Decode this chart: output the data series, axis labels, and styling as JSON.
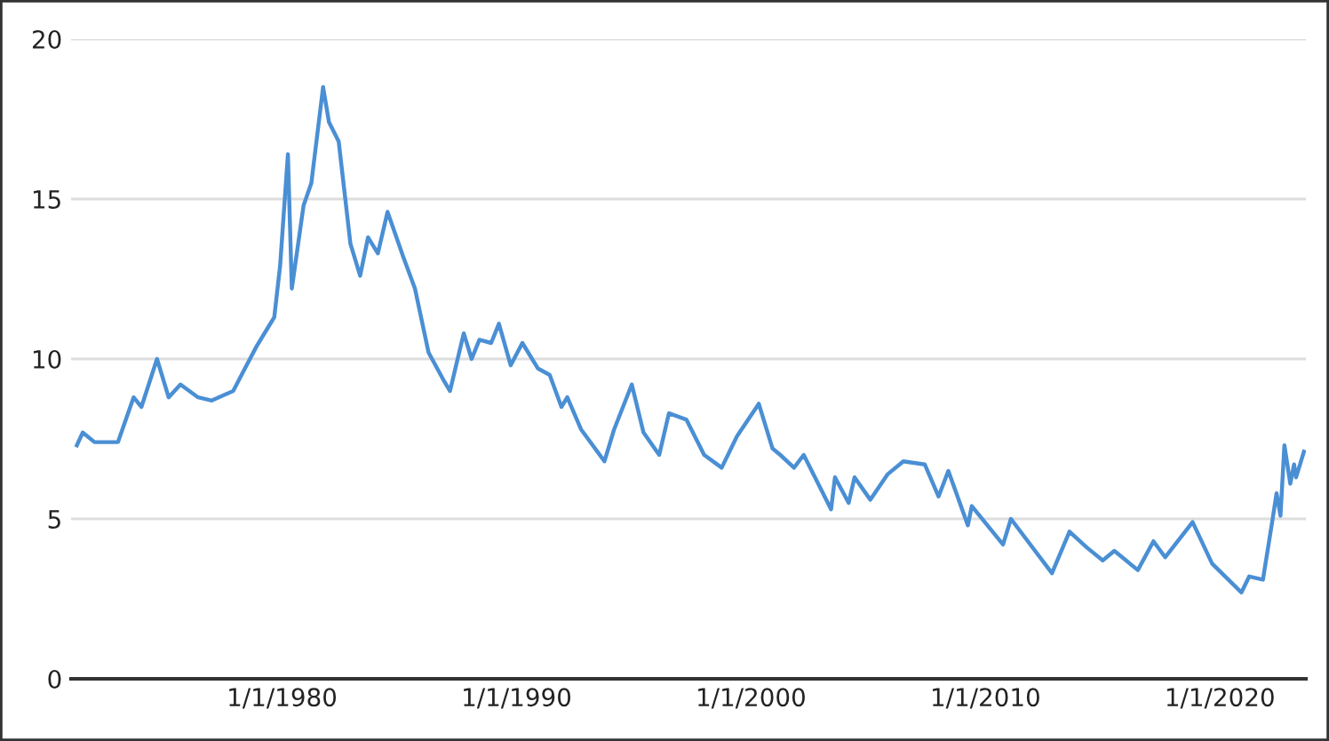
{
  "chart_data": {
    "type": "line",
    "x": [
      "1971-04",
      "1971-07",
      "1972-01",
      "1973-01",
      "1973-09",
      "1974-01",
      "1974-09",
      "1975-03",
      "1975-09",
      "1976-06",
      "1977-01",
      "1977-12",
      "1978-06",
      "1978-12",
      "1979-06",
      "1979-09",
      "1979-12",
      "1980-04",
      "1980-06",
      "1980-12",
      "1981-04",
      "1981-10",
      "1982-01",
      "1982-06",
      "1982-12",
      "1983-05",
      "1983-09",
      "1984-02",
      "1984-07",
      "1985-03",
      "1985-09",
      "1986-04",
      "1986-12",
      "1987-03",
      "1987-10",
      "1988-02",
      "1988-06",
      "1988-12",
      "1989-04",
      "1989-10",
      "1990-04",
      "1990-12",
      "1991-06",
      "1991-12",
      "1992-03",
      "1992-10",
      "1993-10",
      "1994-03",
      "1994-12",
      "1995-06",
      "1996-02",
      "1996-07",
      "1997-04",
      "1998-01",
      "1998-10",
      "1999-06",
      "2000-05",
      "2000-12",
      "2001-04",
      "2001-11",
      "2002-04",
      "2003-06",
      "2003-08",
      "2004-03",
      "2004-06",
      "2005-02",
      "2005-11",
      "2006-07",
      "2007-06",
      "2008-01",
      "2008-06",
      "2009-04",
      "2009-06",
      "2010-10",
      "2011-02",
      "2012-11",
      "2013-08",
      "2014-05",
      "2015-01",
      "2015-07",
      "2016-07",
      "2017-03",
      "2017-09",
      "2018-11",
      "2019-09",
      "2020-12",
      "2021-04",
      "2021-11",
      "2022-04",
      "2022-06",
      "2022-08",
      "2022-10",
      "2023-01",
      "2023-03",
      "2023-04",
      "2023-08"
    ],
    "series": [
      {
        "color": "#4a8fd4",
        "values": [
          7.3,
          7.7,
          7.4,
          7.4,
          8.8,
          8.5,
          10.0,
          8.8,
          9.2,
          8.8,
          8.7,
          9.0,
          9.7,
          10.4,
          11.0,
          11.3,
          12.9,
          16.4,
          12.2,
          14.8,
          15.5,
          18.5,
          17.4,
          16.8,
          13.6,
          12.6,
          13.8,
          13.3,
          14.6,
          13.2,
          12.2,
          10.2,
          9.3,
          9.0,
          10.8,
          10.0,
          10.6,
          10.5,
          11.1,
          9.8,
          10.5,
          9.7,
          9.5,
          8.5,
          8.8,
          7.8,
          6.8,
          7.8,
          9.2,
          7.7,
          7.0,
          8.3,
          8.1,
          7.0,
          6.6,
          7.6,
          8.6,
          7.2,
          7.0,
          6.6,
          7.0,
          5.3,
          6.3,
          5.5,
          6.3,
          5.6,
          6.4,
          6.8,
          6.7,
          5.7,
          6.5,
          4.8,
          5.4,
          4.2,
          5.0,
          3.3,
          4.6,
          4.1,
          3.7,
          4.0,
          3.4,
          4.3,
          3.8,
          4.9,
          3.6,
          2.7,
          3.2,
          3.1,
          5.0,
          5.8,
          5.1,
          7.3,
          6.1,
          6.7,
          6.3,
          7.1
        ]
      }
    ],
    "xlim": [
      "1971-01",
      "2023-09"
    ],
    "xticks": [
      {
        "value": "1980-01-01",
        "label": "1/1/1980"
      },
      {
        "value": "1990-01-01",
        "label": "1/1/1990"
      },
      {
        "value": "2000-01-01",
        "label": "1/1/2000"
      },
      {
        "value": "2010-01-01",
        "label": "1/1/2010"
      },
      {
        "value": "2020-01-01",
        "label": "1/1/2020"
      }
    ],
    "ylim": [
      0,
      20
    ],
    "yticks": [
      0,
      5,
      10,
      15,
      20
    ],
    "grid": "y",
    "legend": false,
    "marker": "none",
    "line_style": "solid"
  }
}
